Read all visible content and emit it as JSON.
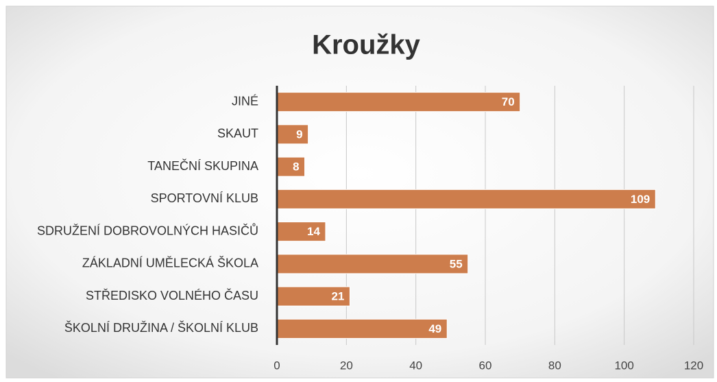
{
  "chart_data": {
    "type": "hbar",
    "title": "Kroužky",
    "categories": [
      "JINÉ",
      "SKAUT",
      "TANEČNÍ SKUPINA",
      "SPORTOVNÍ KLUB",
      "SDRUŽENÍ DOBROVOLNÝCH HASIČŮ",
      "ZÁKLADNÍ UMĚLECKÁ ŠKOLA",
      "STŘEDISKO VOLNÉHO ČASU",
      "ŠKOLNÍ DRUŽINA / ŠKOLNÍ KLUB"
    ],
    "values": [
      70,
      9,
      8,
      109,
      14,
      55,
      21,
      49
    ],
    "color": "#cd7d4c",
    "xlim": [
      0,
      120
    ],
    "xticks": [
      0,
      20,
      40,
      60,
      80,
      100,
      120
    ],
    "grid": true
  }
}
